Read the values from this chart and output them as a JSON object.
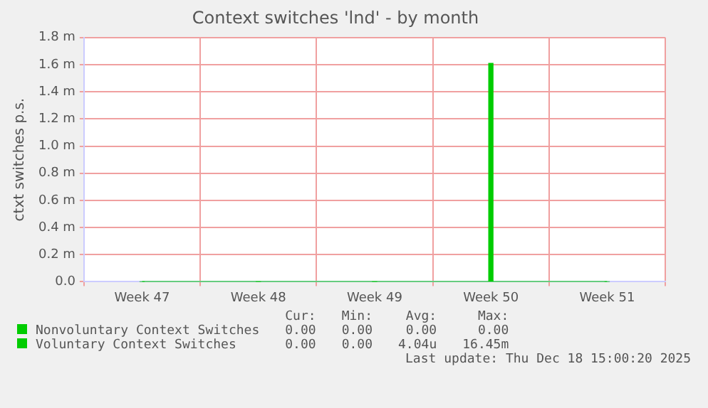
{
  "chart_data": {
    "type": "bar",
    "title": "Context switches 'lnd' - by month",
    "ylabel": "ctxt switches p.s.",
    "categories": [
      "Week 47",
      "Week 48",
      "Week 49",
      "Week 50",
      "Week 51"
    ],
    "ylim": [
      0,
      1.8
    ],
    "yticks": [
      {
        "value": 0,
        "label": "0.0"
      },
      {
        "value": 0.2,
        "label": "0.2 m"
      },
      {
        "value": 0.4,
        "label": "0.4 m"
      },
      {
        "value": 0.6,
        "label": "0.6 m"
      },
      {
        "value": 0.8,
        "label": "0.8 m"
      },
      {
        "value": 1.0,
        "label": "1.0 m"
      },
      {
        "value": 1.2,
        "label": "1.2 m"
      },
      {
        "value": 1.4,
        "label": "1.4 m"
      },
      {
        "value": 1.6,
        "label": "1.6 m"
      },
      {
        "value": 1.8,
        "label": "1.8 m"
      }
    ],
    "grid": true,
    "legend": "bottom",
    "series": [
      {
        "name": "Nonvoluntary Context Switches",
        "color": "#00cc00",
        "type": "line",
        "values": [
          0,
          0,
          0,
          0,
          0
        ]
      },
      {
        "name": "Voluntary Context Switches",
        "color": "#00cc00",
        "values": [
          0,
          0,
          0,
          1.61,
          0
        ]
      }
    ],
    "annotations": [
      "Cur:",
      "Min:",
      "Avg:",
      "Max:",
      "0.00",
      "0.00",
      "0.00",
      "0.00",
      "0.00",
      "0.00",
      "4.04u",
      "16.45m",
      "Last update: Thu Dec 18 15:00:20 2025"
    ]
  }
}
